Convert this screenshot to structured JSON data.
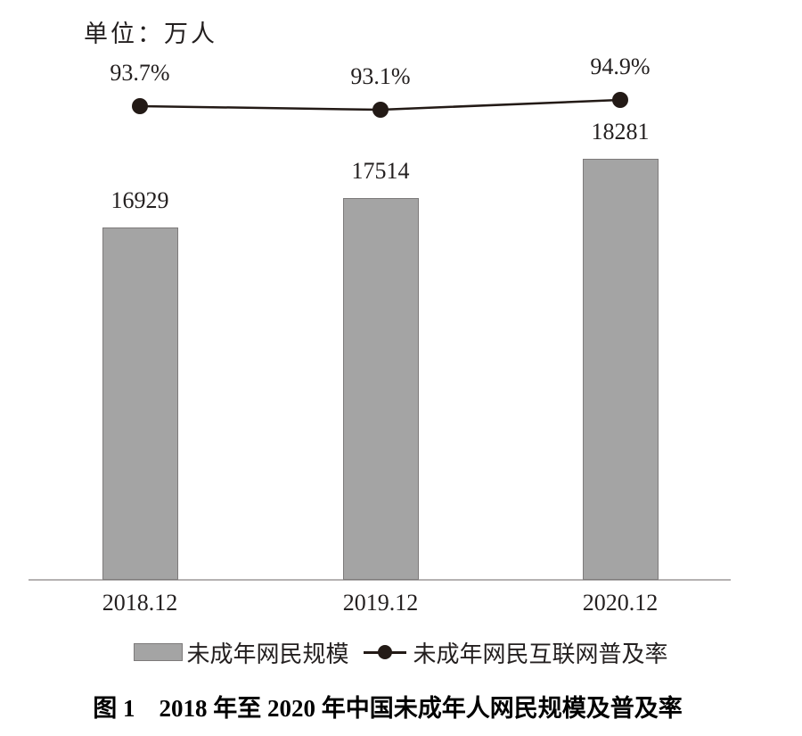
{
  "figure": {
    "unit_label": "单位：万人",
    "caption": "图 1　2018 年至 2020 年中国未成年人网民规模及普及率"
  },
  "chart_data": {
    "type": "combo",
    "categories": [
      "2018.12",
      "2019.12",
      "2020.12"
    ],
    "series": [
      {
        "name": "未成年网民规模",
        "type": "bar",
        "unit": "万人",
        "values": [
          16929,
          17514,
          18281
        ],
        "labels": [
          "16929",
          "17514",
          "18281"
        ],
        "color": "#a4a4a4"
      },
      {
        "name": "未成年网民互联网普及率",
        "type": "line",
        "unit": "%",
        "values": [
          93.7,
          93.1,
          94.9
        ],
        "labels": [
          "93.7%",
          "93.1%",
          "94.9%"
        ],
        "color": "#231a16"
      }
    ],
    "title": "图 1　2018 年至 2020 年中国未成年人网民规模及普及率",
    "unit_label": "单位：万人",
    "xlabel": "",
    "ylabel": "",
    "grid": false,
    "legend_position": "bottom",
    "value_labels_shown": true
  },
  "legend": {
    "items": [
      {
        "label": "未成年网民规模",
        "marker": "bar-swatch"
      },
      {
        "label": "未成年网民互联网普及率",
        "marker": "line-dot"
      }
    ]
  },
  "colors": {
    "bar_fill": "#a4a4a4",
    "bar_border": "#7d7a7a",
    "line": "#231a16",
    "axis": "#b5b2b2",
    "text": "#231f1f"
  }
}
